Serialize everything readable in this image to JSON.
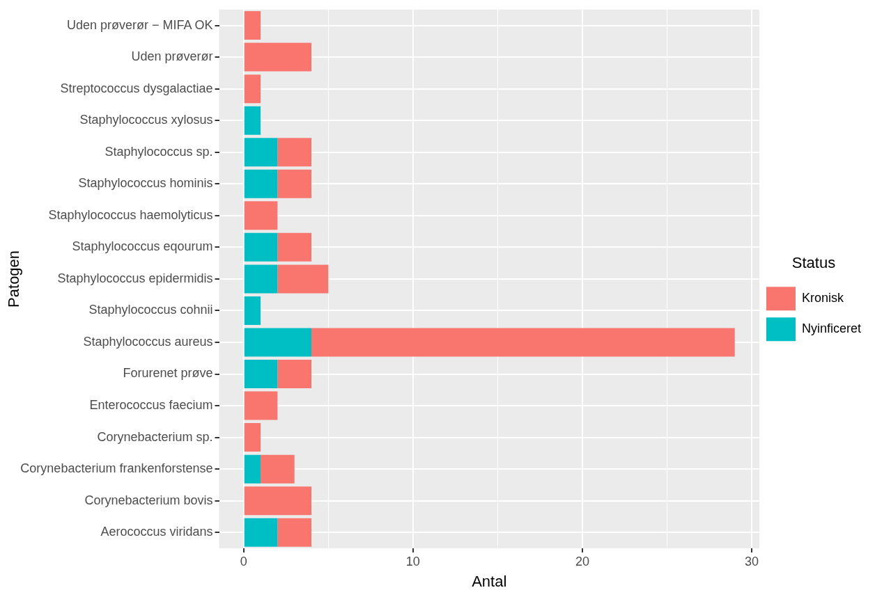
{
  "chart_data": {
    "type": "bar",
    "orientation": "horizontal",
    "stacked": true,
    "xlabel": "Antal",
    "ylabel": "Patogen",
    "legend_title": "Status",
    "legend": "right",
    "grid": true,
    "categories": [
      "Uden prøverør − MIFA OK",
      "Uden prøverør",
      "Streptococcus dysgalactiae",
      "Staphylococcus xylosus",
      "Staphylococcus sp.",
      "Staphylococcus hominis",
      "Staphylococcus haemolyticus",
      "Staphylococcus eqourum",
      "Staphylococcus epidermidis",
      "Staphylococcus cohnii",
      "Staphylococcus aureus",
      "Forurenet prøve",
      "Enterococcus faecium",
      "Corynebacterium sp.",
      "Corynebacterium frankenforstense",
      "Corynebacterium bovis",
      "Aerococcus viridans"
    ],
    "series": [
      {
        "name": "Nyinficeret",
        "color": "#00bfc4",
        "values": [
          0,
          0,
          0,
          1,
          2,
          2,
          0,
          2,
          2,
          1,
          4,
          2,
          0,
          0,
          1,
          0,
          2
        ]
      },
      {
        "name": "Kronisk",
        "color": "#f8766d",
        "values": [
          1,
          4,
          1,
          0,
          2,
          2,
          2,
          2,
          3,
          0,
          25,
          2,
          2,
          1,
          2,
          4,
          2
        ]
      }
    ],
    "xlim": [
      -1.45,
      30.45
    ],
    "xticks": [
      0,
      {
        "value": 5,
        "label": null
      },
      10,
      {
        "value": 15,
        "label": null
      },
      20,
      {
        "value": 25,
        "label": null
      },
      30
    ]
  }
}
